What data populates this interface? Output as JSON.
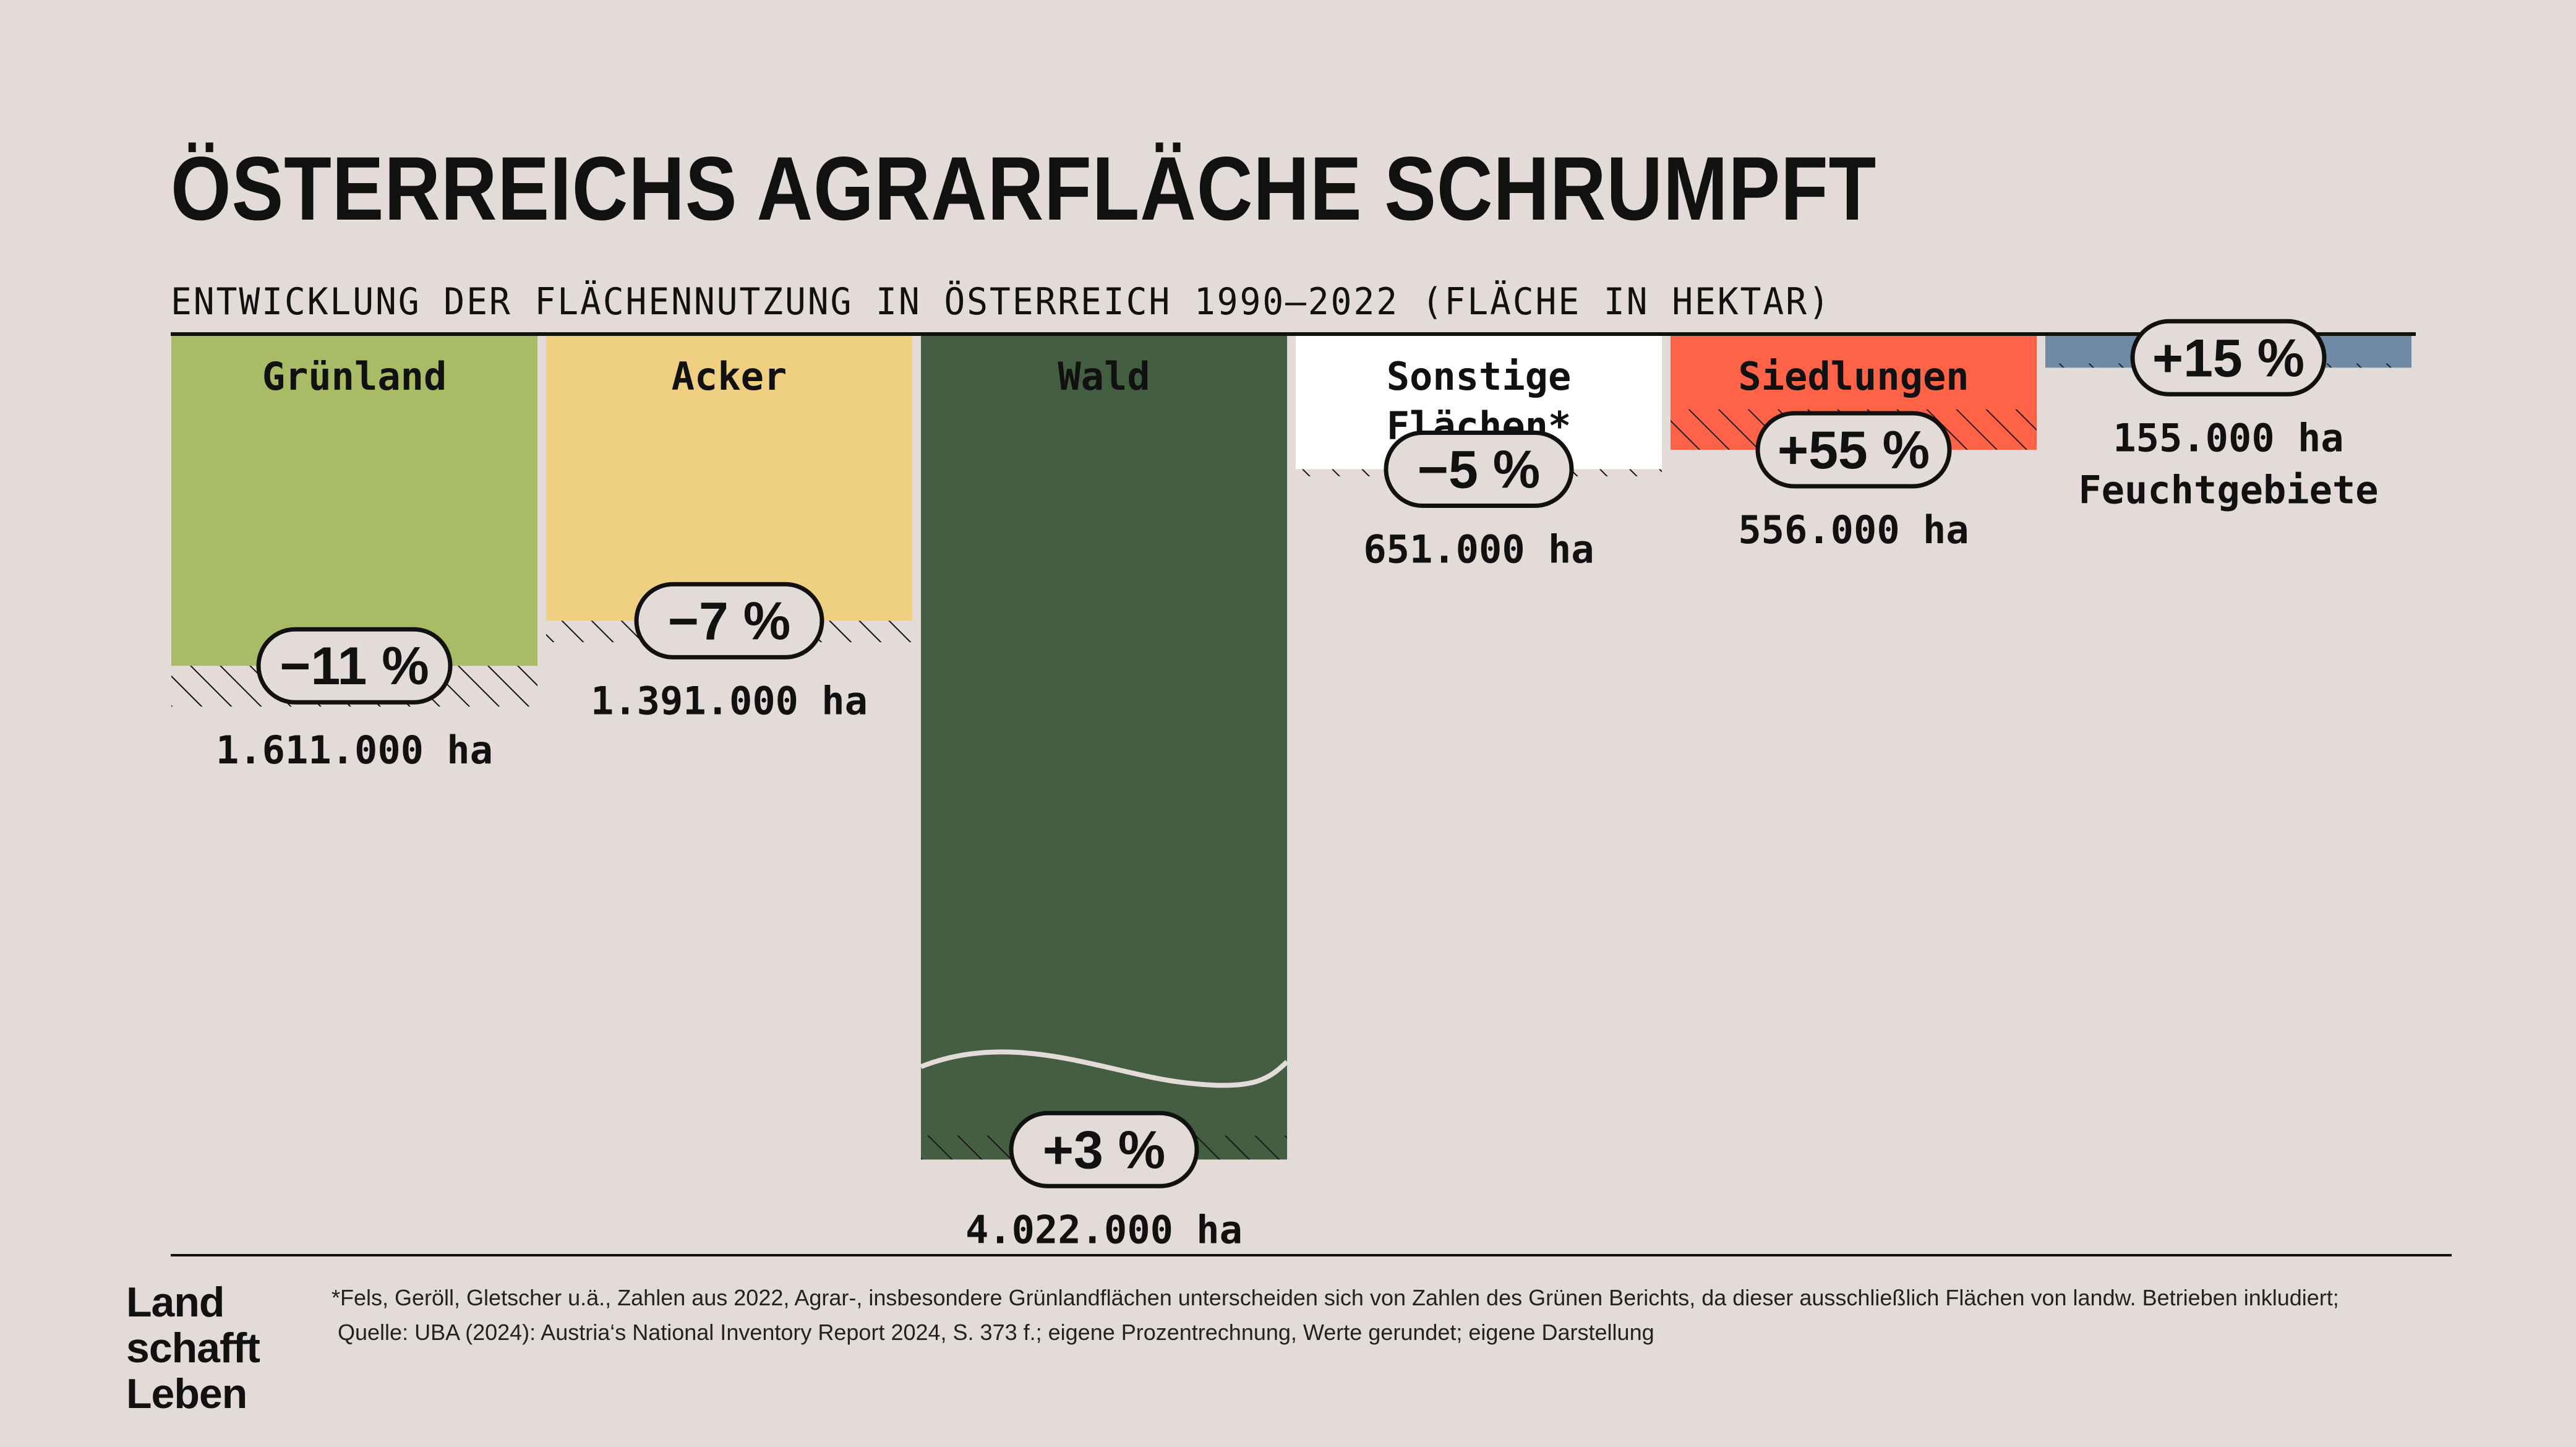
{
  "title": "ÖSTERREICHS AGRARFLÄCHE SCHRUMPFT",
  "subtitle": "ENTWICKLUNG DER FLÄCHENNUTZUNG IN ÖSTERREICH 1990–2022 (FLÄCHE IN HEKTAR)",
  "colors": {
    "background": "#e2dbd7",
    "ink": "#111111",
    "gruenland": "#aabb66",
    "acker": "#efd083",
    "wald": "#445e42",
    "sonstige": "#ffffff",
    "siedlungen": "#ff6347",
    "feuchtgebiete": "#6e8aa6"
  },
  "chart_data": {
    "type": "bar",
    "title": "ÖSTERREICHS AGRARFLÄCHE SCHRUMPFT",
    "subtitle": "ENTWICKLUNG DER FLÄCHENNUTZUNG IN ÖSTERREICH 1990–2022 (FLÄCHE IN HEKTAR)",
    "orientation": "downward from top baseline",
    "unit": "ha",
    "hatch_meaning": "Veränderung 1990–2022",
    "categories": [
      "Grünland",
      "Acker",
      "Wald",
      "Sonstige Flächen*",
      "Siedlungen",
      "Feuchtgebiete"
    ],
    "values_2022": [
      1611000,
      1391000,
      4022000,
      651000,
      556000,
      155000
    ],
    "change_percent": [
      -11,
      -7,
      3,
      -5,
      55,
      15
    ],
    "bars": [
      {
        "label": "Grünland",
        "value": 1611000,
        "change": -11,
        "badge": "-11%",
        "value_label": "1.611.000 ha",
        "color": "#aabb66",
        "label_inside": true,
        "text_color": "#111111"
      },
      {
        "label": "Acker",
        "value": 1391000,
        "change": -7,
        "badge": "-7%",
        "value_label": "1.391.000 ha",
        "color": "#efd083",
        "label_inside": true,
        "text_color": "#111111"
      },
      {
        "label": "Wald",
        "value": 4022000,
        "change": 3,
        "badge": "+3%",
        "value_label": "4.022.000 ha",
        "color": "#445e42",
        "label_inside": true,
        "text_color": "#111111"
      },
      {
        "label": "Sonstige Flächen*",
        "value": 651000,
        "change": -5,
        "badge": "-5%",
        "value_label": "651.000 ha",
        "color": "#ffffff",
        "label_inside": true,
        "text_color": "#111111"
      },
      {
        "label": "Siedlungen",
        "value": 556000,
        "change": 55,
        "badge": "+55%",
        "value_label": "556.000 ha",
        "color": "#ff6347",
        "label_inside": true,
        "text_color": "#111111"
      },
      {
        "label": "Feuchtgebiete",
        "value": 155000,
        "change": 15,
        "badge": "+15%",
        "value_label": "155.000 ha",
        "color": "#6e8aa6",
        "label_inside": false,
        "text_color": "#111111"
      }
    ]
  },
  "footer": {
    "logo_lines": [
      "Land",
      "schafft",
      "Leben"
    ],
    "footnote_lines": [
      "*Fels, Geröll, Gletscher u.ä., Zahlen aus 2022, Agrar-, insbesondere Grünlandflächen unterscheiden sich von Zahlen des Grünen Berichts, da dieser ausschließlich Flächen von landw. Betrieben inkludiert;",
      "Quelle: UBA (2024): Austria‘s National Inventory Report 2024, S. 373 f.; eigene Prozentrechnung, Werte gerundet; eigene Darstellung"
    ]
  }
}
